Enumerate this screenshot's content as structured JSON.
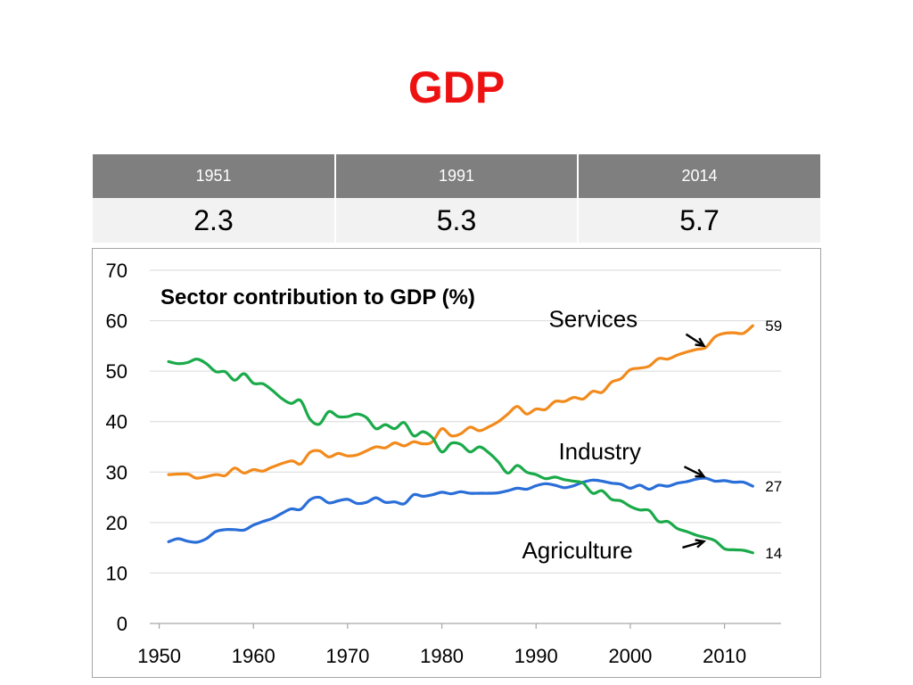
{
  "slide": {
    "title": "GDP",
    "title_color": "#ee1111"
  },
  "growth_table": {
    "headers": [
      "1951",
      "1991",
      "2014"
    ],
    "values": [
      "2.3",
      "5.3",
      "5.7"
    ],
    "header_bg": "#7f7f7f",
    "row_bg": "#f2f2f2"
  },
  "chart_data": {
    "type": "line",
    "title": "Sector contribution to GDP (%)",
    "xlabel": "",
    "ylabel": "",
    "xlim": [
      1949,
      2016
    ],
    "ylim": [
      0,
      70
    ],
    "xticks": [
      1950,
      1960,
      1970,
      1980,
      1990,
      2000,
      2010
    ],
    "yticks": [
      0,
      10,
      20,
      30,
      40,
      50,
      60,
      70
    ],
    "grid": true,
    "legend": "none",
    "series": [
      {
        "name": "Services",
        "color": "#f28a1c",
        "end_label": "59",
        "x": [
          1951,
          1953,
          1954,
          1956,
          1957,
          1958,
          1959,
          1960,
          1961,
          1962,
          1964,
          1965,
          1966,
          1967,
          1968,
          1969,
          1970,
          1971,
          1972,
          1973,
          1974,
          1975,
          1976,
          1977,
          1978,
          1979,
          1980,
          1981,
          1982,
          1983,
          1984,
          1985,
          1986,
          1987,
          1988,
          1989,
          1990,
          1991,
          1992,
          1993,
          1994,
          1995,
          1996,
          1997,
          1998,
          1999,
          2000,
          2001,
          2002,
          2003,
          2004,
          2005,
          2006,
          2007,
          2008,
          2009,
          2010,
          2011,
          2012,
          2013
        ],
        "y": [
          29.5,
          29.6,
          28.8,
          29.5,
          29.3,
          30.8,
          29.8,
          30.5,
          30.2,
          31.0,
          32.2,
          31.6,
          33.9,
          34.2,
          33.0,
          33.7,
          33.2,
          33.4,
          34.2,
          35.0,
          34.8,
          35.8,
          35.2,
          36.0,
          35.6,
          36.0,
          38.6,
          37.2,
          37.6,
          38.9,
          38.2,
          39.0,
          40.0,
          41.5,
          43.0,
          41.5,
          42.5,
          42.4,
          44.0,
          44.0,
          44.8,
          44.5,
          46.0,
          45.8,
          47.8,
          48.5,
          50.3,
          50.6,
          51.0,
          52.5,
          52.4,
          53.2,
          53.8,
          54.3,
          54.7,
          56.8,
          57.5,
          57.6,
          57.5,
          59.0
        ]
      },
      {
        "name": "Industry",
        "color": "#2a6ed8",
        "end_label": "27",
        "x": [
          1951,
          1952,
          1953,
          1954,
          1955,
          1956,
          1957,
          1958,
          1959,
          1960,
          1961,
          1962,
          1963,
          1964,
          1965,
          1966,
          1967,
          1968,
          1969,
          1970,
          1971,
          1972,
          1973,
          1974,
          1975,
          1976,
          1977,
          1978,
          1979,
          1980,
          1981,
          1982,
          1983,
          1984,
          1985,
          1986,
          1987,
          1988,
          1989,
          1990,
          1991,
          1992,
          1993,
          1994,
          1995,
          1996,
          1997,
          1998,
          1999,
          2000,
          2001,
          2002,
          2003,
          2004,
          2005,
          2006,
          2007,
          2008,
          2009,
          2010,
          2011,
          2012,
          2013
        ],
        "y": [
          16.2,
          16.8,
          16.3,
          16.1,
          16.8,
          18.2,
          18.6,
          18.6,
          18.5,
          19.5,
          20.2,
          20.8,
          21.8,
          22.7,
          22.6,
          24.5,
          25.0,
          23.9,
          24.3,
          24.6,
          23.8,
          24.0,
          24.9,
          24.0,
          24.1,
          23.7,
          25.5,
          25.2,
          25.5,
          26.0,
          25.7,
          26.1,
          25.8,
          25.8,
          25.8,
          25.9,
          26.3,
          26.8,
          26.6,
          27.3,
          27.7,
          27.4,
          26.9,
          27.3,
          28.0,
          28.4,
          28.2,
          27.8,
          27.6,
          26.8,
          27.4,
          26.6,
          27.4,
          27.2,
          27.8,
          28.1,
          28.6,
          28.8,
          28.2,
          28.3,
          28.0,
          28.0,
          27.2
        ]
      },
      {
        "name": "Agriculture",
        "color": "#1aaa4a",
        "end_label": "14",
        "x": [
          1951,
          1952,
          1953,
          1954,
          1955,
          1956,
          1957,
          1958,
          1959,
          1960,
          1961,
          1962,
          1963,
          1964,
          1965,
          1966,
          1967,
          1968,
          1969,
          1970,
          1971,
          1972,
          1973,
          1974,
          1975,
          1976,
          1977,
          1978,
          1979,
          1980,
          1981,
          1982,
          1983,
          1984,
          1985,
          1986,
          1987,
          1988,
          1989,
          1990,
          1991,
          1992,
          1993,
          1994,
          1995,
          1996,
          1997,
          1998,
          1999,
          2000,
          2001,
          2002,
          2003,
          2004,
          2005,
          2006,
          2007,
          2008,
          2009,
          2010,
          2011,
          2012,
          2013
        ],
        "y": [
          51.9,
          51.5,
          51.7,
          52.4,
          51.5,
          49.9,
          49.9,
          48.2,
          49.5,
          47.6,
          47.5,
          46.2,
          44.6,
          43.6,
          44.2,
          40.5,
          39.5,
          42.0,
          41.0,
          41.0,
          41.5,
          40.8,
          38.6,
          39.4,
          38.6,
          39.8,
          37.2,
          38.0,
          36.8,
          34.0,
          35.7,
          35.5,
          34.0,
          35.0,
          33.8,
          32.0,
          29.8,
          31.3,
          30.0,
          29.5,
          28.7,
          29.0,
          28.5,
          28.2,
          27.8,
          25.8,
          26.3,
          24.6,
          24.3,
          23.2,
          22.5,
          22.4,
          20.2,
          20.2,
          18.8,
          18.2,
          17.5,
          17.0,
          16.4,
          14.8,
          14.6,
          14.5,
          14.0
        ]
      }
    ],
    "annotations": [
      {
        "text": "Services",
        "series": "Services",
        "point_x": 2008,
        "point_y": 54.5
      },
      {
        "text": "Industry",
        "series": "Industry",
        "point_x": 2008,
        "point_y": 28.6
      },
      {
        "text": "Agriculture",
        "series": "Agriculture",
        "point_x": 2008,
        "point_y": 16.8
      }
    ]
  }
}
